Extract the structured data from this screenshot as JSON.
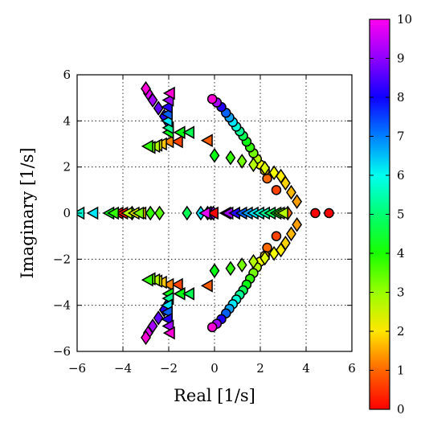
{
  "chart_data": {
    "type": "scatter",
    "title": "",
    "xlabel": "Real [1/s]",
    "ylabel": "Imaginary [1/s]",
    "xlim": [
      -6,
      6
    ],
    "ylim": [
      -6,
      6
    ],
    "xticks": [
      -6,
      -4,
      -2,
      0,
      2,
      4,
      6
    ],
    "yticks": [
      -6,
      -4,
      -2,
      0,
      2,
      4,
      6
    ],
    "xtick_labels": [
      "−6",
      "−4",
      "−2",
      "0",
      "2",
      "4",
      "6"
    ],
    "ytick_labels": [
      "−6",
      "−4",
      "−2",
      "0",
      "2",
      "4",
      "6"
    ],
    "grid": true,
    "colorbar": {
      "colormap": "gist_rainbow",
      "range": [
        0,
        10
      ],
      "ticks": [
        0,
        1,
        2,
        3,
        4,
        5,
        6,
        7,
        8,
        9,
        10
      ],
      "tick_labels": [
        "0",
        "1",
        "2",
        "3",
        "4",
        "5",
        "6",
        "7",
        "8",
        "9",
        "10"
      ]
    },
    "marker_series": [
      {
        "marker": "circle",
        "points": [
          {
            "v": 0.0,
            "x": 5.0,
            "y": 0.0
          },
          {
            "v": 0.0,
            "x": 4.4,
            "y": 0.0
          },
          {
            "v": 0.5,
            "x": 2.7,
            "y": 1.0
          },
          {
            "v": 0.5,
            "x": 2.7,
            "y": -1.0
          },
          {
            "v": 0.8,
            "x": 2.3,
            "y": 1.5
          },
          {
            "v": 0.8,
            "x": 2.3,
            "y": -1.5
          },
          {
            "v": 1.5,
            "x": 2.2,
            "y": 1.85
          },
          {
            "v": 1.5,
            "x": 2.2,
            "y": -1.85
          },
          {
            "v": 2.0,
            "x": 2.0,
            "y": 2.1
          },
          {
            "v": 2.0,
            "x": 2.0,
            "y": -2.1
          },
          {
            "v": 2.5,
            "x": 1.85,
            "y": 2.35
          },
          {
            "v": 2.5,
            "x": 1.85,
            "y": -2.35
          },
          {
            "v": 3.0,
            "x": 1.7,
            "y": 2.6
          },
          {
            "v": 3.0,
            "x": 1.7,
            "y": -2.6
          },
          {
            "v": 3.5,
            "x": 1.55,
            "y": 2.85
          },
          {
            "v": 3.5,
            "x": 1.55,
            "y": -2.85
          },
          {
            "v": 4.0,
            "x": 1.4,
            "y": 3.1
          },
          {
            "v": 4.0,
            "x": 1.4,
            "y": -3.1
          },
          {
            "v": 4.5,
            "x": 1.25,
            "y": 3.35
          },
          {
            "v": 4.5,
            "x": 1.25,
            "y": -3.35
          },
          {
            "v": 5.0,
            "x": 1.1,
            "y": 3.55
          },
          {
            "v": 5.0,
            "x": 1.1,
            "y": -3.55
          },
          {
            "v": 5.5,
            "x": 0.95,
            "y": 3.75
          },
          {
            "v": 5.5,
            "x": 0.95,
            "y": -3.75
          },
          {
            "v": 6.0,
            "x": 0.8,
            "y": 3.95
          },
          {
            "v": 6.0,
            "x": 0.8,
            "y": -3.95
          },
          {
            "v": 6.5,
            "x": 0.65,
            "y": 4.15
          },
          {
            "v": 6.5,
            "x": 0.65,
            "y": -4.15
          },
          {
            "v": 7.0,
            "x": 0.5,
            "y": 4.35
          },
          {
            "v": 7.0,
            "x": 0.5,
            "y": -4.35
          },
          {
            "v": 8.0,
            "x": 0.3,
            "y": 4.6
          },
          {
            "v": 8.0,
            "x": 0.3,
            "y": -4.6
          },
          {
            "v": 9.0,
            "x": 0.1,
            "y": 4.8
          },
          {
            "v": 9.0,
            "x": 0.1,
            "y": -4.8
          },
          {
            "v": 10.0,
            "x": -0.1,
            "y": 4.95
          },
          {
            "v": 10.0,
            "x": -0.1,
            "y": -4.95
          }
        ]
      },
      {
        "marker": "diamond",
        "points": [
          {
            "v": 0.8,
            "x": 3.2,
            "y": 0.0
          },
          {
            "v": 1.2,
            "x": 3.6,
            "y": 0.5
          },
          {
            "v": 1.2,
            "x": 3.6,
            "y": -0.5
          },
          {
            "v": 1.4,
            "x": 3.35,
            "y": 0.9
          },
          {
            "v": 1.4,
            "x": 3.35,
            "y": -0.9
          },
          {
            "v": 1.6,
            "x": 3.1,
            "y": 1.3
          },
          {
            "v": 1.6,
            "x": 3.1,
            "y": -1.3
          },
          {
            "v": 1.8,
            "x": 2.9,
            "y": 1.6
          },
          {
            "v": 1.8,
            "x": 2.9,
            "y": -1.6
          },
          {
            "v": 2.0,
            "x": 2.6,
            "y": 1.75
          },
          {
            "v": 2.0,
            "x": 2.6,
            "y": -1.75
          },
          {
            "v": 2.2,
            "x": 2.2,
            "y": 1.95
          },
          {
            "v": 2.2,
            "x": 2.2,
            "y": -1.95
          },
          {
            "v": 2.5,
            "x": 1.7,
            "y": 2.1
          },
          {
            "v": 2.5,
            "x": 1.7,
            "y": -2.1
          },
          {
            "v": 3.0,
            "x": 1.2,
            "y": 2.25
          },
          {
            "v": 3.0,
            "x": 1.2,
            "y": -2.25
          },
          {
            "v": 3.5,
            "x": 0.7,
            "y": 2.4
          },
          {
            "v": 3.5,
            "x": 0.7,
            "y": -2.4
          },
          {
            "v": 4.0,
            "x": 0.0,
            "y": 2.5
          },
          {
            "v": 4.0,
            "x": 0.0,
            "y": -2.5
          },
          {
            "v": 3.8,
            "x": -3.6,
            "y": 0.0
          },
          {
            "v": 3.5,
            "x": -2.8,
            "y": 0.0
          },
          {
            "v": 3.2,
            "x": -2.4,
            "y": 0.0
          },
          {
            "v": 4.5,
            "x": -1.2,
            "y": 0.0
          },
          {
            "v": 6.0,
            "x": -0.6,
            "y": 0.0
          },
          {
            "v": 7.0,
            "x": -0.3,
            "y": 0.0
          },
          {
            "v": 8.5,
            "x": -0.15,
            "y": 0.0
          },
          {
            "v": 9.0,
            "x": -0.05,
            "y": 0.0
          },
          {
            "v": 7.5,
            "x": -2.0,
            "y": 3.9
          },
          {
            "v": 7.5,
            "x": -2.0,
            "y": -3.9
          },
          {
            "v": 8.0,
            "x": -2.2,
            "y": 4.2
          },
          {
            "v": 8.0,
            "x": -2.2,
            "y": -4.2
          },
          {
            "v": 8.5,
            "x": -2.45,
            "y": 4.55
          },
          {
            "v": 8.5,
            "x": -2.45,
            "y": -4.55
          },
          {
            "v": 9.0,
            "x": -2.7,
            "y": 4.9
          },
          {
            "v": 9.0,
            "x": -2.7,
            "y": -4.9
          },
          {
            "v": 9.5,
            "x": -2.9,
            "y": 5.2
          },
          {
            "v": 9.5,
            "x": -2.9,
            "y": -5.2
          },
          {
            "v": 10.0,
            "x": -3.0,
            "y": 5.4
          },
          {
            "v": 10.0,
            "x": -3.0,
            "y": -5.4
          }
        ]
      },
      {
        "marker": "triangle-left",
        "points": [
          {
            "v": 0.0,
            "x": -4.2,
            "y": 0.0
          },
          {
            "v": 0.0,
            "x": -0.05,
            "y": 0.0
          },
          {
            "v": 0.2,
            "x": -4.0,
            "y": 0.0
          },
          {
            "v": 0.5,
            "x": -1.6,
            "y": 3.1
          },
          {
            "v": 0.5,
            "x": -1.6,
            "y": -3.1
          },
          {
            "v": 0.3,
            "x": 0.5,
            "y": 0.0
          },
          {
            "v": 0.7,
            "x": -0.3,
            "y": 3.15
          },
          {
            "v": 0.7,
            "x": -0.3,
            "y": -3.15
          },
          {
            "v": 1.0,
            "x": -2.0,
            "y": 3.1
          },
          {
            "v": 1.0,
            "x": -2.0,
            "y": -3.1
          },
          {
            "v": 1.5,
            "x": -2.3,
            "y": 3.0
          },
          {
            "v": 1.5,
            "x": -2.3,
            "y": -3.0
          },
          {
            "v": 2.0,
            "x": -2.5,
            "y": 2.95
          },
          {
            "v": 2.0,
            "x": -2.5,
            "y": -2.95
          },
          {
            "v": 2.5,
            "x": -2.6,
            "y": 2.9
          },
          {
            "v": 2.5,
            "x": -2.6,
            "y": -2.9
          },
          {
            "v": 3.0,
            "x": -2.8,
            "y": 2.85
          },
          {
            "v": 3.0,
            "x": -2.8,
            "y": -2.85
          },
          {
            "v": 3.5,
            "x": -2.9,
            "y": 2.9
          },
          {
            "v": 3.5,
            "x": -2.9,
            "y": -2.9
          },
          {
            "v": 4.0,
            "x": -2.0,
            "y": 3.5
          },
          {
            "v": 4.0,
            "x": -2.0,
            "y": -3.5
          },
          {
            "v": 4.0,
            "x": -1.5,
            "y": 3.5
          },
          {
            "v": 4.0,
            "x": -1.5,
            "y": -3.5
          },
          {
            "v": 4.5,
            "x": -1.1,
            "y": 3.5
          },
          {
            "v": 4.5,
            "x": -1.1,
            "y": -3.5
          },
          {
            "v": 5.0,
            "x": -2.0,
            "y": 3.7
          },
          {
            "v": 5.0,
            "x": -2.0,
            "y": -3.7
          },
          {
            "v": 6.0,
            "x": -2.05,
            "y": 4.0
          },
          {
            "v": 6.0,
            "x": -2.05,
            "y": -4.0
          },
          {
            "v": 7.0,
            "x": -2.05,
            "y": 4.3
          },
          {
            "v": 7.0,
            "x": -2.05,
            "y": -4.3
          },
          {
            "v": 8.0,
            "x": -2.05,
            "y": 4.6
          },
          {
            "v": 8.0,
            "x": -2.05,
            "y": -4.6
          },
          {
            "v": 9.0,
            "x": -2.0,
            "y": 4.9
          },
          {
            "v": 9.0,
            "x": -2.0,
            "y": -4.9
          },
          {
            "v": 10.0,
            "x": -1.95,
            "y": 5.2
          },
          {
            "v": 10.0,
            "x": -1.95,
            "y": -5.2
          },
          {
            "v": 5.5,
            "x": -5.9,
            "y": 0.0
          },
          {
            "v": 6.0,
            "x": -5.3,
            "y": 0.0
          },
          {
            "v": 4.0,
            "x": -4.6,
            "y": 0.0
          },
          {
            "v": 3.5,
            "x": -4.4,
            "y": 0.0
          },
          {
            "v": 2.5,
            "x": -3.8,
            "y": 0.0
          },
          {
            "v": 2.0,
            "x": -3.5,
            "y": 0.0
          },
          {
            "v": 1.5,
            "x": -3.2,
            "y": 0.0
          },
          {
            "v": 3.0,
            "x": -3.3,
            "y": 0.0
          },
          {
            "v": 9.5,
            "x": -0.4,
            "y": 0.0
          },
          {
            "v": 9.0,
            "x": 0.6,
            "y": 0.0
          },
          {
            "v": 8.0,
            "x": 0.9,
            "y": 0.0
          },
          {
            "v": 7.0,
            "x": 1.2,
            "y": 0.0
          },
          {
            "v": 6.5,
            "x": 1.45,
            "y": 0.0
          },
          {
            "v": 6.0,
            "x": 1.7,
            "y": 0.0
          },
          {
            "v": 5.5,
            "x": 1.95,
            "y": 0.0
          },
          {
            "v": 5.0,
            "x": 2.2,
            "y": 0.0
          },
          {
            "v": 4.5,
            "x": 2.45,
            "y": 0.0
          },
          {
            "v": 4.0,
            "x": 2.7,
            "y": 0.0
          },
          {
            "v": 3.0,
            "x": 2.85,
            "y": 0.0
          },
          {
            "v": 2.5,
            "x": 3.0,
            "y": 0.0
          }
        ]
      }
    ]
  }
}
